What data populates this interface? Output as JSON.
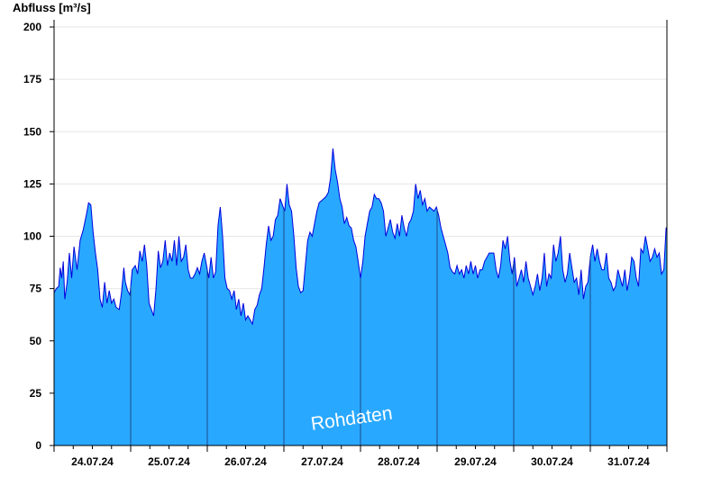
{
  "chart_data": {
    "type": "area",
    "ylabel": "Abfluss [m³/s]",
    "ylim": [
      0,
      200
    ],
    "yticks": [
      0,
      25,
      50,
      75,
      100,
      125,
      150,
      175,
      200
    ],
    "xlim_days": [
      0,
      8
    ],
    "day_labels": [
      "24.07.24",
      "25.07.24",
      "26.07.24",
      "27.07.24",
      "28.07.24",
      "29.07.24",
      "30.07.24",
      "31.07.24"
    ],
    "grid": "horizontal",
    "fill_color": "#29a8ff",
    "line_color": "#0000dd",
    "annotation": "Rohdaten",
    "series": [
      {
        "values": [
          [
            0.0,
            73
          ],
          [
            0.03,
            75
          ],
          [
            0.06,
            76
          ],
          [
            0.08,
            85
          ],
          [
            0.1,
            80
          ],
          [
            0.12,
            88
          ],
          [
            0.14,
            70
          ],
          [
            0.17,
            78
          ],
          [
            0.2,
            92
          ],
          [
            0.23,
            80
          ],
          [
            0.26,
            95
          ],
          [
            0.3,
            84
          ],
          [
            0.34,
            98
          ],
          [
            0.38,
            103
          ],
          [
            0.42,
            110
          ],
          [
            0.45,
            116
          ],
          [
            0.48,
            115
          ],
          [
            0.51,
            102
          ],
          [
            0.54,
            92
          ],
          [
            0.57,
            84
          ],
          [
            0.6,
            70
          ],
          [
            0.63,
            66
          ],
          [
            0.66,
            78
          ],
          [
            0.69,
            68
          ],
          [
            0.72,
            74
          ],
          [
            0.75,
            68
          ],
          [
            0.78,
            70
          ],
          [
            0.81,
            66
          ],
          [
            0.85,
            65
          ],
          [
            0.88,
            73
          ],
          [
            0.91,
            85
          ],
          [
            0.93,
            78
          ],
          [
            0.96,
            74
          ],
          [
            0.99,
            72
          ],
          [
            1.02,
            84
          ],
          [
            1.06,
            86
          ],
          [
            1.09,
            82
          ],
          [
            1.12,
            93
          ],
          [
            1.15,
            88
          ],
          [
            1.18,
            96
          ],
          [
            1.21,
            86
          ],
          [
            1.24,
            68
          ],
          [
            1.27,
            65
          ],
          [
            1.3,
            62
          ],
          [
            1.33,
            75
          ],
          [
            1.36,
            93
          ],
          [
            1.39,
            85
          ],
          [
            1.42,
            88
          ],
          [
            1.45,
            98
          ],
          [
            1.48,
            86
          ],
          [
            1.51,
            92
          ],
          [
            1.54,
            88
          ],
          [
            1.57,
            98
          ],
          [
            1.6,
            86
          ],
          [
            1.63,
            100
          ],
          [
            1.66,
            88
          ],
          [
            1.69,
            90
          ],
          [
            1.72,
            96
          ],
          [
            1.75,
            84
          ],
          [
            1.78,
            80
          ],
          [
            1.81,
            80
          ],
          [
            1.84,
            82
          ],
          [
            1.87,
            85
          ],
          [
            1.9,
            82
          ],
          [
            1.93,
            88
          ],
          [
            1.96,
            92
          ],
          [
            1.99,
            86
          ],
          [
            2.02,
            80
          ],
          [
            2.05,
            90
          ],
          [
            2.08,
            80
          ],
          [
            2.11,
            83
          ],
          [
            2.14,
            105
          ],
          [
            2.17,
            114
          ],
          [
            2.2,
            100
          ],
          [
            2.23,
            80
          ],
          [
            2.26,
            75
          ],
          [
            2.29,
            74
          ],
          [
            2.32,
            70
          ],
          [
            2.35,
            74
          ],
          [
            2.38,
            65
          ],
          [
            2.41,
            70
          ],
          [
            2.44,
            62
          ],
          [
            2.47,
            68
          ],
          [
            2.5,
            60
          ],
          [
            2.53,
            62
          ],
          [
            2.56,
            60
          ],
          [
            2.59,
            58
          ],
          [
            2.62,
            65
          ],
          [
            2.65,
            67
          ],
          [
            2.68,
            72
          ],
          [
            2.71,
            75
          ],
          [
            2.74,
            85
          ],
          [
            2.77,
            96
          ],
          [
            2.8,
            105
          ],
          [
            2.83,
            98
          ],
          [
            2.86,
            100
          ],
          [
            2.89,
            108
          ],
          [
            2.92,
            110
          ],
          [
            2.95,
            118
          ],
          [
            2.98,
            115
          ],
          [
            3.01,
            112
          ],
          [
            3.04,
            125
          ],
          [
            3.07,
            115
          ],
          [
            3.1,
            112
          ],
          [
            3.13,
            100
          ],
          [
            3.16,
            85
          ],
          [
            3.19,
            76
          ],
          [
            3.22,
            73
          ],
          [
            3.25,
            74
          ],
          [
            3.28,
            86
          ],
          [
            3.31,
            98
          ],
          [
            3.34,
            102
          ],
          [
            3.37,
            100
          ],
          [
            3.4,
            106
          ],
          [
            3.43,
            112
          ],
          [
            3.46,
            116
          ],
          [
            3.49,
            117
          ],
          [
            3.52,
            118
          ],
          [
            3.55,
            119
          ],
          [
            3.58,
            121
          ],
          [
            3.61,
            128
          ],
          [
            3.64,
            142
          ],
          [
            3.67,
            132
          ],
          [
            3.7,
            126
          ],
          [
            3.73,
            118
          ],
          [
            3.76,
            114
          ],
          [
            3.79,
            106
          ],
          [
            3.82,
            109
          ],
          [
            3.85,
            105
          ],
          [
            3.88,
            104
          ],
          [
            3.91,
            98
          ],
          [
            3.94,
            95
          ],
          [
            3.97,
            88
          ],
          [
            4.0,
            80
          ],
          [
            4.03,
            88
          ],
          [
            4.06,
            100
          ],
          [
            4.09,
            106
          ],
          [
            4.12,
            112
          ],
          [
            4.15,
            114
          ],
          [
            4.18,
            120
          ],
          [
            4.21,
            118
          ],
          [
            4.24,
            118
          ],
          [
            4.27,
            116
          ],
          [
            4.3,
            112
          ],
          [
            4.33,
            100
          ],
          [
            4.36,
            104
          ],
          [
            4.39,
            108
          ],
          [
            4.42,
            102
          ],
          [
            4.45,
            99
          ],
          [
            4.48,
            106
          ],
          [
            4.51,
            100
          ],
          [
            4.54,
            110
          ],
          [
            4.57,
            104
          ],
          [
            4.6,
            100
          ],
          [
            4.63,
            106
          ],
          [
            4.66,
            108
          ],
          [
            4.69,
            112
          ],
          [
            4.72,
            125
          ],
          [
            4.75,
            118
          ],
          [
            4.78,
            122
          ],
          [
            4.81,
            115
          ],
          [
            4.84,
            118
          ],
          [
            4.87,
            112
          ],
          [
            4.9,
            114
          ],
          [
            4.93,
            113
          ],
          [
            4.96,
            112
          ],
          [
            4.99,
            114
          ],
          [
            5.02,
            110
          ],
          [
            5.05,
            104
          ],
          [
            5.08,
            100
          ],
          [
            5.11,
            96
          ],
          [
            5.14,
            92
          ],
          [
            5.17,
            85
          ],
          [
            5.2,
            83
          ],
          [
            5.23,
            82
          ],
          [
            5.26,
            86
          ],
          [
            5.29,
            82
          ],
          [
            5.32,
            84
          ],
          [
            5.35,
            80
          ],
          [
            5.38,
            86
          ],
          [
            5.41,
            82
          ],
          [
            5.44,
            88
          ],
          [
            5.47,
            82
          ],
          [
            5.5,
            86
          ],
          [
            5.53,
            80
          ],
          [
            5.56,
            84
          ],
          [
            5.59,
            84
          ],
          [
            5.62,
            88
          ],
          [
            5.65,
            90
          ],
          [
            5.68,
            92
          ],
          [
            5.71,
            92
          ],
          [
            5.74,
            92
          ],
          [
            5.77,
            84
          ],
          [
            5.8,
            80
          ],
          [
            5.83,
            86
          ],
          [
            5.86,
            98
          ],
          [
            5.89,
            94
          ],
          [
            5.92,
            100
          ],
          [
            5.95,
            88
          ],
          [
            5.98,
            82
          ],
          [
            6.01,
            90
          ],
          [
            6.04,
            76
          ],
          [
            6.07,
            80
          ],
          [
            6.1,
            84
          ],
          [
            6.13,
            78
          ],
          [
            6.16,
            88
          ],
          [
            6.19,
            80
          ],
          [
            6.22,
            76
          ],
          [
            6.25,
            72
          ],
          [
            6.28,
            76
          ],
          [
            6.31,
            82
          ],
          [
            6.34,
            74
          ],
          [
            6.37,
            80
          ],
          [
            6.4,
            92
          ],
          [
            6.43,
            76
          ],
          [
            6.46,
            82
          ],
          [
            6.49,
            80
          ],
          [
            6.52,
            96
          ],
          [
            6.55,
            88
          ],
          [
            6.58,
            92
          ],
          [
            6.61,
            100
          ],
          [
            6.64,
            84
          ],
          [
            6.67,
            78
          ],
          [
            6.7,
            82
          ],
          [
            6.73,
            92
          ],
          [
            6.76,
            85
          ],
          [
            6.79,
            78
          ],
          [
            6.82,
            80
          ],
          [
            6.85,
            72
          ],
          [
            6.88,
            84
          ],
          [
            6.91,
            70
          ],
          [
            6.94,
            76
          ],
          [
            6.97,
            78
          ],
          [
            7.0,
            90
          ],
          [
            7.03,
            96
          ],
          [
            7.06,
            88
          ],
          [
            7.09,
            94
          ],
          [
            7.12,
            88
          ],
          [
            7.15,
            84
          ],
          [
            7.18,
            84
          ],
          [
            7.21,
            92
          ],
          [
            7.24,
            80
          ],
          [
            7.27,
            78
          ],
          [
            7.3,
            74
          ],
          [
            7.33,
            76
          ],
          [
            7.36,
            84
          ],
          [
            7.39,
            80
          ],
          [
            7.42,
            76
          ],
          [
            7.45,
            84
          ],
          [
            7.48,
            74
          ],
          [
            7.51,
            80
          ],
          [
            7.54,
            90
          ],
          [
            7.57,
            88
          ],
          [
            7.6,
            80
          ],
          [
            7.63,
            76
          ],
          [
            7.66,
            94
          ],
          [
            7.69,
            92
          ],
          [
            7.72,
            100
          ],
          [
            7.75,
            94
          ],
          [
            7.78,
            88
          ],
          [
            7.81,
            90
          ],
          [
            7.84,
            94
          ],
          [
            7.87,
            90
          ],
          [
            7.9,
            92
          ],
          [
            7.93,
            82
          ],
          [
            7.96,
            84
          ],
          [
            7.99,
            104
          ],
          [
            8.0,
            104
          ]
        ]
      }
    ]
  }
}
